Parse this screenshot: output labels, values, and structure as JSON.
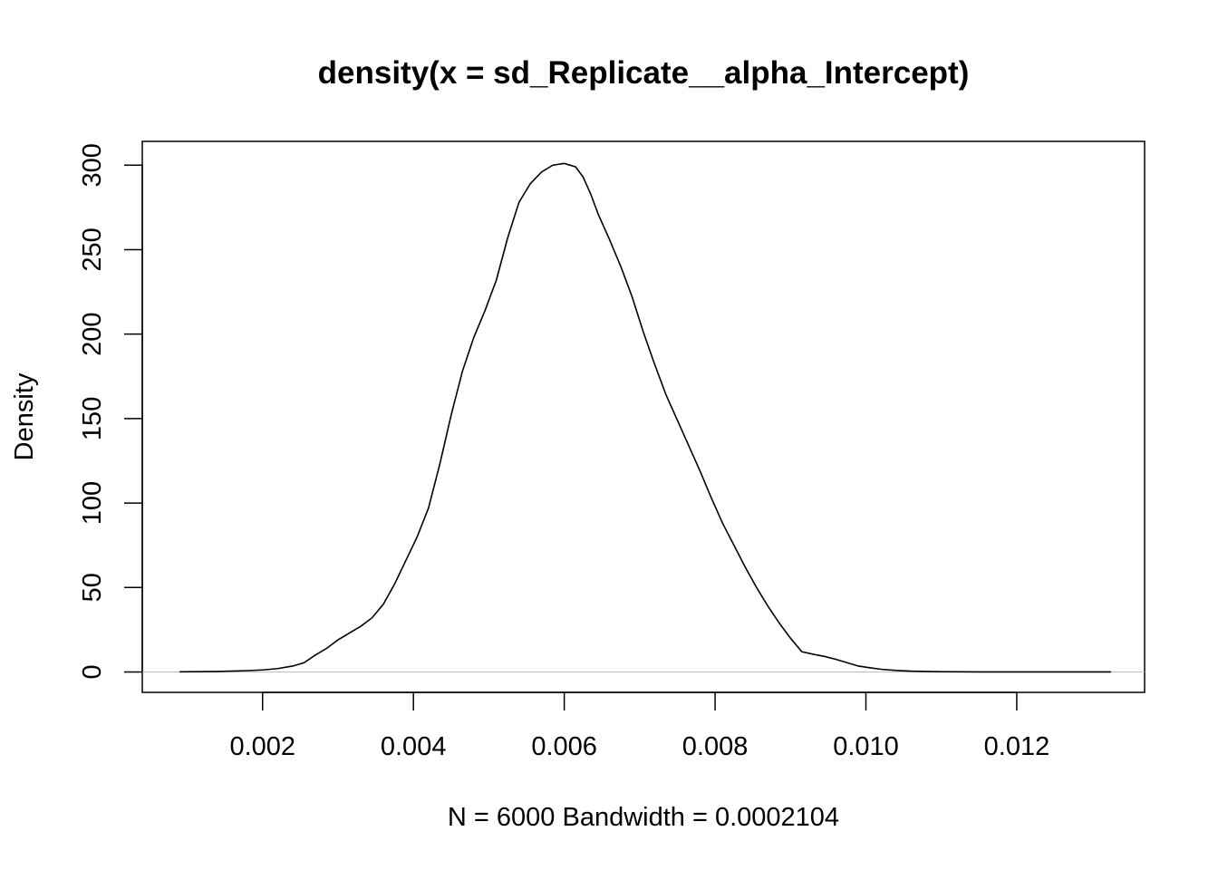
{
  "chart_data": {
    "type": "line",
    "title": "density(x = sd_Replicate__alpha_Intercept)",
    "xlabel": "N = 6000   Bandwidth = 0.0002104",
    "ylabel": "Density",
    "xlim": [
      0.000405,
      0.013695
    ],
    "ylim": [
      -12.08,
      314.08
    ],
    "x_ticks": [
      0.002,
      0.004,
      0.006,
      0.008,
      0.01,
      0.012
    ],
    "x_tick_labels": [
      "0.002",
      "0.004",
      "0.006",
      "0.008",
      "0.010",
      "0.012"
    ],
    "y_ticks": [
      0,
      50,
      100,
      150,
      200,
      250,
      300
    ],
    "y_tick_labels": [
      "0",
      "50",
      "100",
      "150",
      "200",
      "250",
      "300"
    ],
    "baseline_y": 0,
    "baseline_color": "#bebebe",
    "line_color": "#000000",
    "series": [
      {
        "x": [
          0.0009,
          0.0014,
          0.0018,
          0.002,
          0.0022,
          0.0024,
          0.00255,
          0.0027,
          0.00285,
          0.003,
          0.00315,
          0.0033,
          0.00345,
          0.0036,
          0.00375,
          0.0039,
          0.00405,
          0.0042,
          0.00435,
          0.0045,
          0.00465,
          0.0048,
          0.00495,
          0.0051,
          0.00525,
          0.0054,
          0.00555,
          0.0057,
          0.00585,
          0.006,
          0.00615,
          0.00625,
          0.00635,
          0.00645,
          0.0066,
          0.00675,
          0.0069,
          0.00705,
          0.0072,
          0.00735,
          0.0075,
          0.00765,
          0.0078,
          0.00795,
          0.0081,
          0.00825,
          0.0084,
          0.00855,
          0.0087,
          0.00885,
          0.009,
          0.00915,
          0.0093,
          0.00945,
          0.0096,
          0.00975,
          0.0099,
          0.01005,
          0.0102,
          0.0104,
          0.0106,
          0.0108,
          0.011,
          0.0115,
          0.012,
          0.0125,
          0.013,
          0.01325
        ],
        "y": [
          0.1,
          0.3,
          0.8,
          1.2,
          2.0,
          3.5,
          5.5,
          10,
          14,
          19,
          23,
          27,
          32,
          40,
          52,
          66,
          80,
          97,
          123,
          152,
          178,
          198,
          214,
          232,
          257,
          278,
          289,
          296,
          300,
          301,
          299,
          293,
          283,
          271,
          256,
          240,
          222,
          201,
          182,
          164,
          149,
          134,
          119,
          103,
          88,
          75,
          62,
          50,
          39,
          29,
          20,
          12,
          10.5,
          9.2,
          7.5,
          5.5,
          3.5,
          2.5,
          1.6,
          0.9,
          0.5,
          0.3,
          0.15,
          0.05,
          0.02,
          0.01,
          0.01,
          0.01
        ]
      }
    ]
  }
}
